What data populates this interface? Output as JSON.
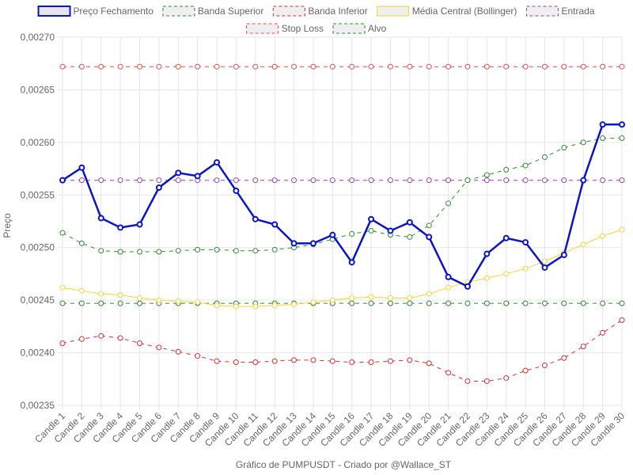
{
  "chart_data": {
    "type": "line",
    "title": "Gráfico de PUMPUSDT - Criado por @Wallace_ST",
    "xlabel": "Gráfico de PUMPUSDT - Criado por @Wallace_ST",
    "ylabel": "Preço",
    "ylim": [
      0.00235,
      0.0027
    ],
    "y_ticks": [
      "0,00235",
      "0,00240",
      "0,00245",
      "0,00250",
      "0,00255",
      "0,00260",
      "0,00265",
      "0,00270"
    ],
    "categories": [
      "Candle 1",
      "Candle 2",
      "Candle 3",
      "Candle 4",
      "Candle 5",
      "Candle 6",
      "Candle 7",
      "Candle 8",
      "Candle 9",
      "Candle 10",
      "Candle 11",
      "Candle 12",
      "Candle 13",
      "Candle 14",
      "Candle 15",
      "Candle 16",
      "Candle 17",
      "Candle 18",
      "Candle 19",
      "Candle 20",
      "Candle 21",
      "Candle 22",
      "Candle 23",
      "Candle 24",
      "Candle 25",
      "Candle 26",
      "Candle 27",
      "Candle 28",
      "Candle 29",
      "Candle 30"
    ],
    "grid": true,
    "legend": "top",
    "series": [
      {
        "name": "Preço Fechamento",
        "color": "#0a14c8",
        "dashed": false,
        "bold": true,
        "values": [
          0.002564,
          0.002576,
          0.002528,
          0.002519,
          0.002522,
          0.002557,
          0.002571,
          0.002568,
          0.002581,
          0.002554,
          0.002527,
          0.002522,
          0.002504,
          0.002504,
          0.002512,
          0.002486,
          0.002527,
          0.002516,
          0.002524,
          0.00251,
          0.002472,
          0.002463,
          0.002494,
          0.002509,
          0.002505,
          0.002481,
          0.002493,
          0.002564,
          0.002617,
          0.002617
        ]
      },
      {
        "name": "Banda Superior",
        "color": "#2e8b2e",
        "dashed": true,
        "values": [
          0.002514,
          0.002504,
          0.002497,
          0.002496,
          0.002496,
          0.002496,
          0.002497,
          0.002498,
          0.002498,
          0.002497,
          0.002497,
          0.002498,
          0.0025,
          0.002503,
          0.002508,
          0.002513,
          0.002516,
          0.002512,
          0.00251,
          0.002521,
          0.002542,
          0.002564,
          0.002569,
          0.002574,
          0.002578,
          0.002586,
          0.002595,
          0.0026,
          0.002604,
          0.002604
        ]
      },
      {
        "name": "Banda Inferior",
        "color": "#dd2c2c",
        "dashed": true,
        "values": [
          0.002409,
          0.002413,
          0.002416,
          0.002414,
          0.002409,
          0.002405,
          0.002401,
          0.002397,
          0.002392,
          0.002391,
          0.002391,
          0.002392,
          0.002393,
          0.002393,
          0.002392,
          0.002391,
          0.002391,
          0.002392,
          0.002393,
          0.00239,
          0.002381,
          0.002373,
          0.002373,
          0.002376,
          0.002383,
          0.002388,
          0.002395,
          0.002406,
          0.002419,
          0.002431
        ]
      },
      {
        "name": "Média Central (Bollinger)",
        "color": "#f2d43a",
        "dashed": false,
        "values": [
          0.002462,
          0.002459,
          0.002456,
          0.002455,
          0.002452,
          0.00245,
          0.002449,
          0.002448,
          0.002445,
          0.002444,
          0.002444,
          0.002445,
          0.002446,
          0.002448,
          0.00245,
          0.002452,
          0.002453,
          0.002452,
          0.002452,
          0.002456,
          0.002462,
          0.002467,
          0.002471,
          0.002475,
          0.00248,
          0.002487,
          0.002495,
          0.002503,
          0.002511,
          0.002517
        ]
      },
      {
        "name": "Entrada",
        "color": "#9b3fb0",
        "dashed": true,
        "values": [
          0.002564,
          0.002564,
          0.002564,
          0.002564,
          0.002564,
          0.002564,
          0.002564,
          0.002564,
          0.002564,
          0.002564,
          0.002564,
          0.002564,
          0.002564,
          0.002564,
          0.002564,
          0.002564,
          0.002564,
          0.002564,
          0.002564,
          0.002564,
          0.002564,
          0.002564,
          0.002564,
          0.002564,
          0.002564,
          0.002564,
          0.002564,
          0.002564,
          0.002564,
          0.002564
        ]
      },
      {
        "name": "Stop Loss",
        "color": "#e84848",
        "dashed": true,
        "values": [
          0.002672,
          0.002672,
          0.002672,
          0.002672,
          0.002672,
          0.002672,
          0.002672,
          0.002672,
          0.002672,
          0.002672,
          0.002672,
          0.002672,
          0.002672,
          0.002672,
          0.002672,
          0.002672,
          0.002672,
          0.002672,
          0.002672,
          0.002672,
          0.002672,
          0.002672,
          0.002672,
          0.002672,
          0.002672,
          0.002672,
          0.002672,
          0.002672,
          0.002672,
          0.002672
        ]
      },
      {
        "name": "Alvo",
        "color": "#2e8b2e",
        "dashed": true,
        "values": [
          0.002447,
          0.002447,
          0.002447,
          0.002447,
          0.002447,
          0.002447,
          0.002447,
          0.002447,
          0.002447,
          0.002447,
          0.002447,
          0.002447,
          0.002447,
          0.002447,
          0.002447,
          0.002447,
          0.002447,
          0.002447,
          0.002447,
          0.002447,
          0.002447,
          0.002447,
          0.002447,
          0.002447,
          0.002447,
          0.002447,
          0.002447,
          0.002447,
          0.002447,
          0.002447
        ]
      }
    ]
  }
}
